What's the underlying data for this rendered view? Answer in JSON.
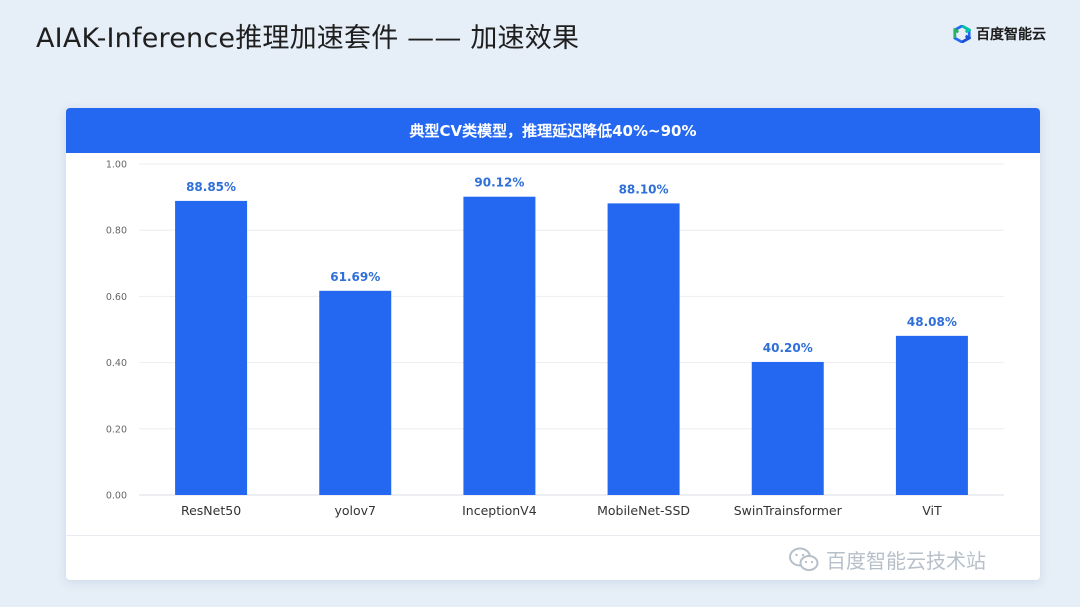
{
  "header": {
    "title": "AIAK-Inference推理加速套件 —— 加速效果",
    "brand_text": "百度智能云",
    "brand_icon": "baidu-ai-cloud-logo"
  },
  "card": {
    "header_text": "典型CV类模型，推理延迟降低40%~90%"
  },
  "watermark": {
    "icon": "wechat-icon",
    "text": "百度智能云技术站"
  },
  "colors": {
    "accent": "#2468f2",
    "bar": "#2468f2",
    "label": "#2f6fd9",
    "axis_text": "#666666"
  },
  "chart_data": {
    "type": "bar",
    "categories": [
      "ResNet50",
      "yolov7",
      "InceptionV4",
      "MobileNet-SSD",
      "SwinTrainsformer",
      "ViT"
    ],
    "values": [
      0.8885,
      0.6169,
      0.9012,
      0.881,
      0.402,
      0.4808
    ],
    "value_labels": [
      "88.85%",
      "61.69%",
      "90.12%",
      "88.10%",
      "40.20%",
      "48.08%"
    ],
    "ylim": [
      0,
      1
    ],
    "yticks": [
      "0.00",
      "0.20",
      "0.40",
      "0.60",
      "0.80",
      "1.00"
    ],
    "grid": true,
    "title": "典型CV类模型，推理延迟降低40%~90%",
    "xlabel": "",
    "ylabel": ""
  }
}
